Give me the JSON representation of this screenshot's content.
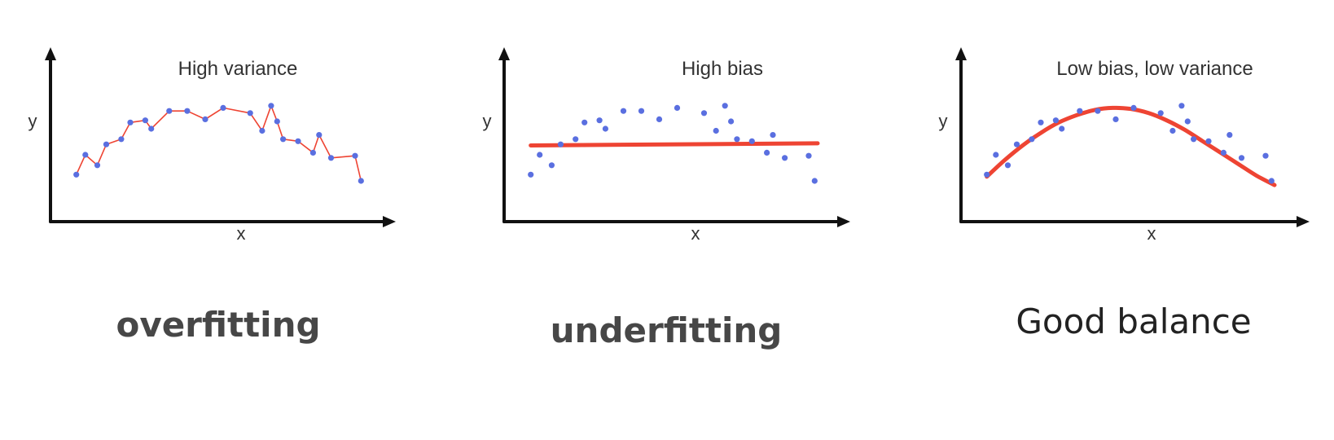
{
  "colors": {
    "axis": "#111111",
    "point": "#5a6fe0",
    "fit": "#ee4433",
    "caption": "#474747",
    "caption_good": "#222222"
  },
  "panels": [
    {
      "id": "overfitting",
      "title": "High variance",
      "x_label": "x",
      "y_label": "y",
      "caption": "overfitting",
      "fit_type": "polyline",
      "points": [
        [
          4,
          24
        ],
        [
          7,
          43
        ],
        [
          11,
          33
        ],
        [
          14,
          53
        ],
        [
          19,
          58
        ],
        [
          22,
          74
        ],
        [
          27,
          76
        ],
        [
          29,
          68
        ],
        [
          35,
          85
        ],
        [
          41,
          85
        ],
        [
          47,
          77
        ],
        [
          53,
          88
        ],
        [
          62,
          83
        ],
        [
          66,
          66
        ],
        [
          69,
          90
        ],
        [
          71,
          75
        ],
        [
          73,
          58
        ],
        [
          78,
          56
        ],
        [
          83,
          45
        ],
        [
          85,
          62
        ],
        [
          89,
          40
        ],
        [
          97,
          42
        ],
        [
          99,
          18
        ]
      ]
    },
    {
      "id": "underfitting",
      "title": "High bias",
      "x_label": "x",
      "y_label": "y",
      "caption": "underfitting",
      "fit_type": "line",
      "fit_line": [
        [
          4,
          52
        ],
        [
          100,
          54
        ]
      ],
      "points": [
        [
          4,
          24
        ],
        [
          7,
          43
        ],
        [
          11,
          33
        ],
        [
          14,
          53
        ],
        [
          19,
          58
        ],
        [
          22,
          74
        ],
        [
          27,
          76
        ],
        [
          29,
          68
        ],
        [
          35,
          85
        ],
        [
          41,
          85
        ],
        [
          47,
          77
        ],
        [
          53,
          88
        ],
        [
          62,
          83
        ],
        [
          66,
          66
        ],
        [
          69,
          90
        ],
        [
          71,
          75
        ],
        [
          73,
          58
        ],
        [
          78,
          56
        ],
        [
          83,
          45
        ],
        [
          85,
          62
        ],
        [
          89,
          40
        ],
        [
          97,
          42
        ],
        [
          99,
          18
        ]
      ]
    },
    {
      "id": "good-balance",
      "title": "Low bias, low variance",
      "x_label": "x",
      "y_label": "y",
      "caption": "Good balance",
      "fit_type": "curve",
      "fit_curve": [
        [
          4,
          22
        ],
        [
          10,
          38
        ],
        [
          16,
          52
        ],
        [
          22,
          64
        ],
        [
          28,
          74
        ],
        [
          34,
          81
        ],
        [
          40,
          86
        ],
        [
          46,
          88
        ],
        [
          52,
          87
        ],
        [
          58,
          83
        ],
        [
          64,
          76
        ],
        [
          70,
          67
        ],
        [
          76,
          56
        ],
        [
          82,
          45
        ],
        [
          88,
          34
        ],
        [
          94,
          23
        ],
        [
          100,
          14
        ]
      ],
      "points": [
        [
          4,
          24
        ],
        [
          7,
          43
        ],
        [
          11,
          33
        ],
        [
          14,
          53
        ],
        [
          19,
          58
        ],
        [
          22,
          74
        ],
        [
          27,
          76
        ],
        [
          29,
          68
        ],
        [
          35,
          85
        ],
        [
          41,
          85
        ],
        [
          47,
          77
        ],
        [
          53,
          88
        ],
        [
          62,
          83
        ],
        [
          66,
          66
        ],
        [
          69,
          90
        ],
        [
          71,
          75
        ],
        [
          73,
          58
        ],
        [
          78,
          56
        ],
        [
          83,
          45
        ],
        [
          85,
          62
        ],
        [
          89,
          40
        ],
        [
          97,
          42
        ],
        [
          99,
          18
        ]
      ]
    }
  ]
}
